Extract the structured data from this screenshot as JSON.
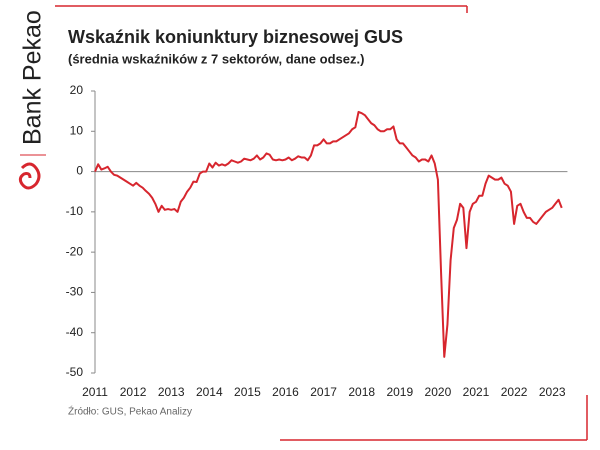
{
  "brand": "Bank Pekao",
  "source": "Źródło: GUS, Pekao Analizy",
  "chart_data": {
    "type": "line",
    "title": "Wskaźnik koniunktury biznesowej GUS",
    "subtitle": "(średnia wskaźników z 7 sektorów, dane odsez.)",
    "xlim": [
      2011,
      2023.4
    ],
    "xticks": [
      2011,
      2012,
      2013,
      2014,
      2015,
      2016,
      2017,
      2018,
      2019,
      2020,
      2021,
      2022,
      2023
    ],
    "ylim": [
      -50,
      20
    ],
    "yticks": [
      -50,
      -40,
      -30,
      -20,
      -10,
      0,
      10,
      20
    ],
    "x": [
      2011,
      2011.083,
      2011.167,
      2011.25,
      2011.333,
      2011.417,
      2011.5,
      2011.583,
      2011.667,
      2011.75,
      2011.833,
      2011.917,
      2012,
      2012.083,
      2012.167,
      2012.25,
      2012.333,
      2012.417,
      2012.5,
      2012.583,
      2012.667,
      2012.75,
      2012.833,
      2012.917,
      2013,
      2013.083,
      2013.167,
      2013.25,
      2013.333,
      2013.417,
      2013.5,
      2013.583,
      2013.667,
      2013.75,
      2013.833,
      2013.917,
      2014,
      2014.083,
      2014.167,
      2014.25,
      2014.333,
      2014.417,
      2014.5,
      2014.583,
      2014.667,
      2014.75,
      2014.833,
      2014.917,
      2015,
      2015.083,
      2015.167,
      2015.25,
      2015.333,
      2015.417,
      2015.5,
      2015.583,
      2015.667,
      2015.75,
      2015.833,
      2015.917,
      2016,
      2016.083,
      2016.167,
      2016.25,
      2016.333,
      2016.417,
      2016.5,
      2016.583,
      2016.667,
      2016.75,
      2016.833,
      2016.917,
      2017,
      2017.083,
      2017.167,
      2017.25,
      2017.333,
      2017.417,
      2017.5,
      2017.583,
      2017.667,
      2017.75,
      2017.833,
      2017.917,
      2018,
      2018.083,
      2018.167,
      2018.25,
      2018.333,
      2018.417,
      2018.5,
      2018.583,
      2018.667,
      2018.75,
      2018.833,
      2018.917,
      2019,
      2019.083,
      2019.167,
      2019.25,
      2019.333,
      2019.417,
      2019.5,
      2019.583,
      2019.667,
      2019.75,
      2019.833,
      2019.917,
      2020,
      2020.083,
      2020.167,
      2020.25,
      2020.333,
      2020.417,
      2020.5,
      2020.583,
      2020.667,
      2020.75,
      2020.833,
      2020.917,
      2021,
      2021.083,
      2021.167,
      2021.25,
      2021.333,
      2021.417,
      2021.5,
      2021.583,
      2021.667,
      2021.75,
      2021.833,
      2021.917,
      2022,
      2022.083,
      2022.167,
      2022.25,
      2022.333,
      2022.417,
      2022.5,
      2022.583,
      2022.667,
      2022.75,
      2022.833,
      2022.917,
      2023,
      2023.083,
      2023.167,
      2023.25
    ],
    "series": [
      {
        "color": "#d7262e",
        "values": [
          0,
          1.8,
          0.5,
          0.8,
          1.2,
          0,
          -0.8,
          -1,
          -1.5,
          -2,
          -2.5,
          -3,
          -3.5,
          -2.8,
          -3.5,
          -4,
          -4.8,
          -5.5,
          -6.5,
          -8,
          -10,
          -8.5,
          -9.5,
          -9.3,
          -9.5,
          -9.3,
          -10,
          -7.5,
          -6.5,
          -5,
          -4,
          -2.5,
          -2.6,
          -0.5,
          0,
          0,
          2,
          1,
          2.2,
          1.5,
          1.8,
          1.5,
          2,
          2.8,
          2.5,
          2.2,
          2.5,
          3.2,
          3,
          2.8,
          3.2,
          4,
          3,
          3.5,
          4.5,
          4.2,
          3,
          2.8,
          3,
          2.8,
          3,
          3.5,
          2.8,
          3.2,
          3.8,
          3.5,
          3.5,
          2.8,
          4,
          6.5,
          6.5,
          7,
          8,
          7,
          7,
          7.5,
          7.5,
          8,
          8.5,
          9,
          9.5,
          10.5,
          11,
          14.8,
          14.5,
          14,
          13,
          12,
          11.5,
          10.5,
          10,
          10,
          10.5,
          10.5,
          11.2,
          8,
          7,
          7,
          6,
          5,
          4,
          3.5,
          2.5,
          3,
          3,
          2.5,
          4,
          2,
          -2,
          -25,
          -46,
          -38,
          -22,
          -14,
          -12,
          -8,
          -9,
          -19,
          -10,
          -8,
          -7.5,
          -6,
          -6,
          -3,
          -1,
          -1.5,
          -2,
          -2,
          -1.5,
          -3,
          -3.5,
          -5,
          -13,
          -8.5,
          -8,
          -10,
          -11.5,
          -11.5,
          -12.5,
          -13,
          -12,
          -11,
          -10,
          -9.5,
          -9,
          -8,
          -7,
          -9
        ]
      }
    ]
  }
}
